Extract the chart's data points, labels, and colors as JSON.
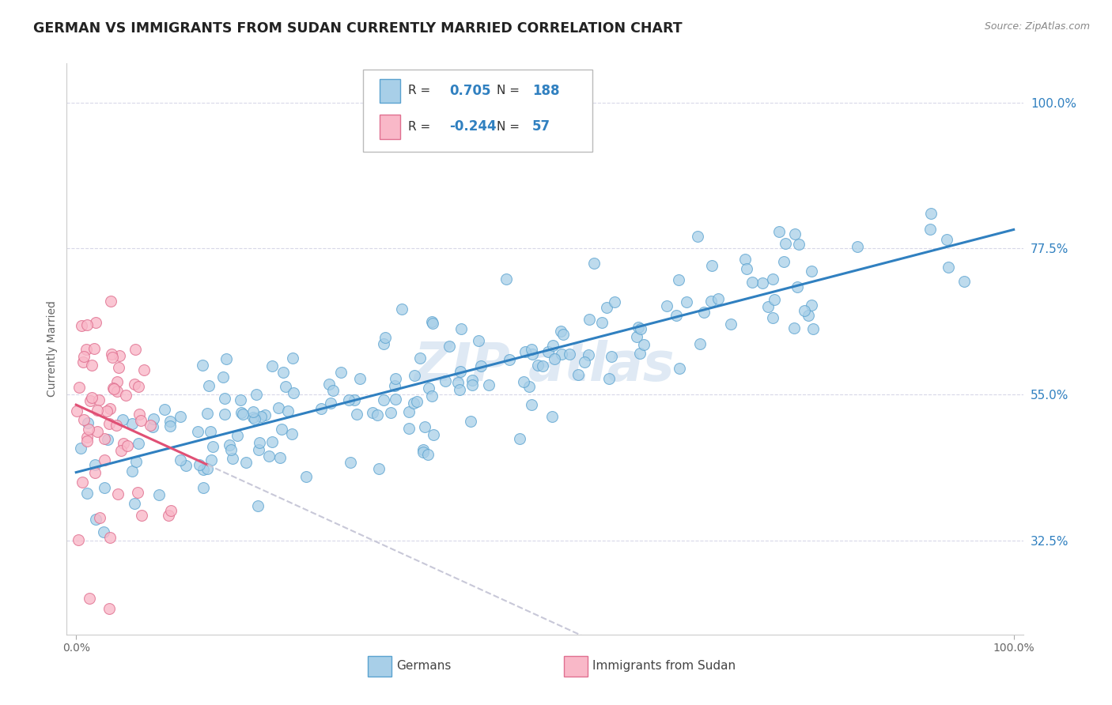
{
  "title": "GERMAN VS IMMIGRANTS FROM SUDAN CURRENTLY MARRIED CORRELATION CHART",
  "source_text": "Source: ZipAtlas.com",
  "ylabel": "Currently Married",
  "xlim": [
    -0.01,
    1.01
  ],
  "ylim": [
    0.18,
    1.06
  ],
  "x_ticks": [
    0.0,
    1.0
  ],
  "x_tick_labels": [
    "0.0%",
    "100.0%"
  ],
  "y_ticks": [
    0.325,
    0.55,
    0.775,
    1.0
  ],
  "y_tick_labels": [
    "32.5%",
    "55.0%",
    "77.5%",
    "100.0%"
  ],
  "german_color": "#a8cfe8",
  "german_edge_color": "#5ba3d0",
  "sudan_color": "#f9b8c8",
  "sudan_edge_color": "#e07090",
  "german_line_color": "#3080c0",
  "sudan_line_color": "#e05075",
  "sudan_line_dash_color": "#c8c8d8",
  "r_german": 0.705,
  "n_german": 188,
  "r_sudan": -0.244,
  "n_sudan": 57,
  "legend_labels": [
    "Germans",
    "Immigrants from Sudan"
  ],
  "watermark": "ZIP atlas",
  "title_fontsize": 12.5,
  "axis_label_fontsize": 10,
  "tick_fontsize": 10,
  "background_color": "#ffffff",
  "grid_color": "#d8d8e8",
  "watermark_color": "#c5d8ec"
}
